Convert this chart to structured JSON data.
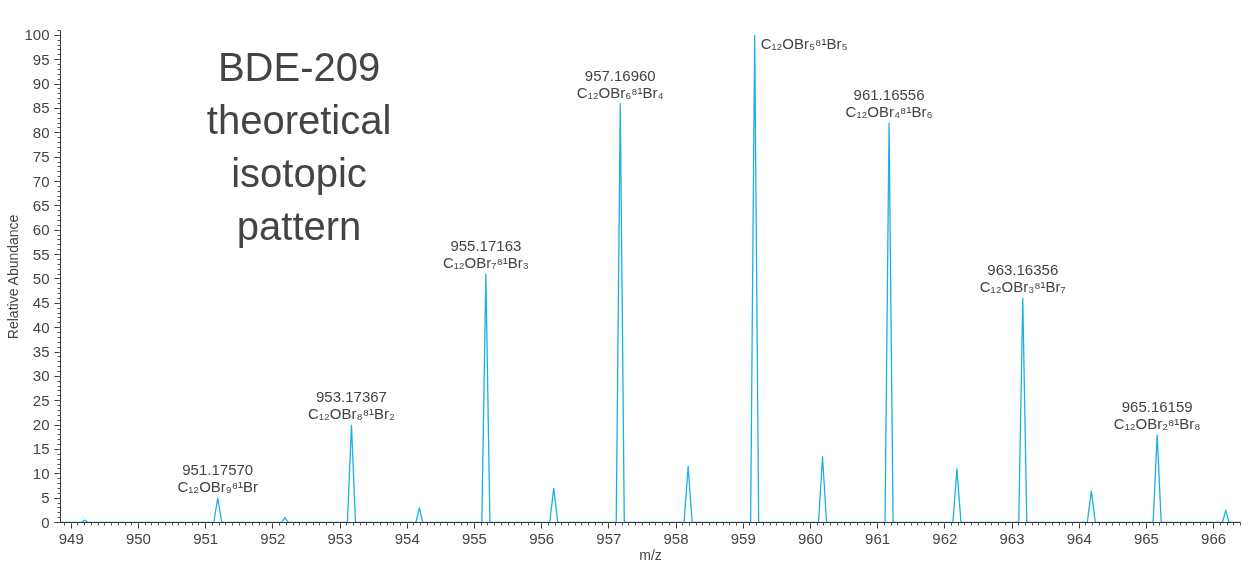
{
  "chart_data": {
    "type": "line",
    "title": "BDE-209\ntheoretical\nisotopic\npattern",
    "xlabel": "m/z",
    "ylabel": "Relative Abundance",
    "series": [
      {
        "color": "#1ab0e8",
        "x": [
          948.84,
          949.15,
          949.2,
          949.25,
          951.12,
          951.18,
          951.24,
          952.13,
          952.18,
          952.23,
          953.11,
          953.17,
          953.23,
          954.13,
          954.18,
          954.23,
          955.11,
          955.17,
          955.23,
          956.12,
          956.18,
          956.24,
          957.11,
          957.17,
          957.23,
          958.12,
          958.18,
          958.24,
          959.11,
          959.17,
          959.23,
          960.12,
          960.18,
          960.24,
          961.11,
          961.17,
          961.23,
          962.12,
          962.18,
          962.24,
          963.1,
          963.16,
          963.22,
          964.12,
          964.18,
          964.24,
          965.1,
          965.16,
          965.22,
          966.13,
          966.18,
          966.23,
          966.4
        ],
        "values": [
          0,
          0,
          0.5,
          0,
          0,
          5,
          0,
          0,
          1,
          0,
          0,
          20,
          0,
          0,
          3,
          0,
          0,
          51,
          0,
          0,
          7,
          0,
          0,
          86,
          0,
          0,
          11.5,
          0,
          0,
          100,
          0,
          0,
          13.5,
          0,
          0,
          82,
          0,
          0,
          11,
          0,
          0,
          46,
          0,
          0,
          6.5,
          0,
          0,
          18,
          0,
          0,
          2.5,
          0,
          0
        ]
      }
    ],
    "annotations": [
      {
        "text": "951.17570\nC₁₂OBr₉⁸¹Br",
        "x": 951.18,
        "y": 5
      },
      {
        "text": "953.17367\nC₁₂OBr₈⁸¹Br₂",
        "x": 953.17,
        "y": 20
      },
      {
        "text": "955.17163\nC₁₂OBr₇⁸¹Br₃",
        "x": 955.17,
        "y": 51
      },
      {
        "text": "957.16960\nC₁₂OBr₆⁸¹Br₄",
        "x": 957.17,
        "y": 86
      },
      {
        "text": "C₁₂OBr₅⁸¹Br₅",
        "x": 959.17,
        "y": 100
      },
      {
        "text": "961.16556\nC₁₂OBr₄⁸¹Br₆",
        "x": 961.17,
        "y": 82
      },
      {
        "text": "963.16356\nC₁₂OBr₃⁸¹Br₇",
        "x": 963.16,
        "y": 46
      },
      {
        "text": "965.16159\nC₁₂OBr₂⁸¹Br₈",
        "x": 965.16,
        "y": 18
      }
    ],
    "xlim": [
      948.84,
      966.4
    ],
    "ylim": [
      0,
      101
    ],
    "xticks": [
      949,
      950,
      951,
      952,
      953,
      954,
      955,
      956,
      957,
      958,
      959,
      960,
      961,
      962,
      963,
      964,
      965,
      966
    ],
    "yticks": [
      0,
      5,
      10,
      15,
      20,
      25,
      30,
      35,
      40,
      45,
      50,
      55,
      60,
      65,
      70,
      75,
      80,
      85,
      90,
      95,
      100
    ],
    "grid": false,
    "line_style": "solid",
    "marker": "none"
  }
}
